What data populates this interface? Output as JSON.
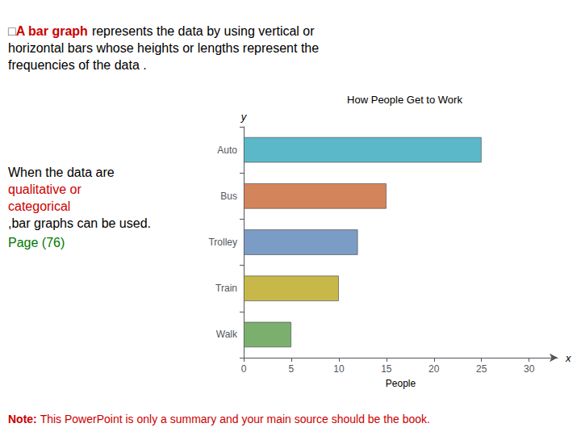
{
  "chart_data": {
    "type": "bar",
    "orientation": "horizontal",
    "title": "How People Get to Work",
    "categories": [
      "Auto",
      "Bus",
      "Trolley",
      "Train",
      "Walk"
    ],
    "values": [
      25,
      15,
      12,
      10,
      5
    ],
    "colors": [
      "#5BB8C8",
      "#D4845A",
      "#7B9CC4",
      "#C8B84A",
      "#7AAF6E"
    ],
    "xlabel": "People",
    "xlim": [
      0,
      33
    ],
    "xticks": [
      0,
      5,
      10,
      15,
      20,
      25,
      30
    ],
    "grid": false,
    "annotations": [
      {
        "text": "□",
        "color": "#555555"
      },
      {
        "text": "A bar graph ",
        "color": "#CC0000"
      },
      {
        "text": "represents the data by using vertical or",
        "color": "#000000"
      },
      {
        "text": "horizontal bars whose heights or lengths represent the",
        "color": "#000000"
      },
      {
        "text": "frequencies of the data .",
        "color": "#000000"
      },
      {
        "text": "When the data are",
        "color": "#000000"
      },
      {
        "text": "qualitative or",
        "color": "#CC0000"
      },
      {
        "text": "categorical",
        "color": "#CC0000"
      },
      {
        "text": ",bar graphs can be used.",
        "color": "#000000"
      },
      {
        "text": "Page (76)",
        "color": "#007700"
      },
      {
        "text": "Note: ",
        "color": "#CC0000"
      },
      {
        "text": "This PowerPoint is only a summary and your main source should be the book.",
        "color": "#CC0000"
      },
      {
        "text": "x",
        "color": "#000000"
      },
      {
        "text": "y",
        "color": "#000000"
      }
    ]
  }
}
